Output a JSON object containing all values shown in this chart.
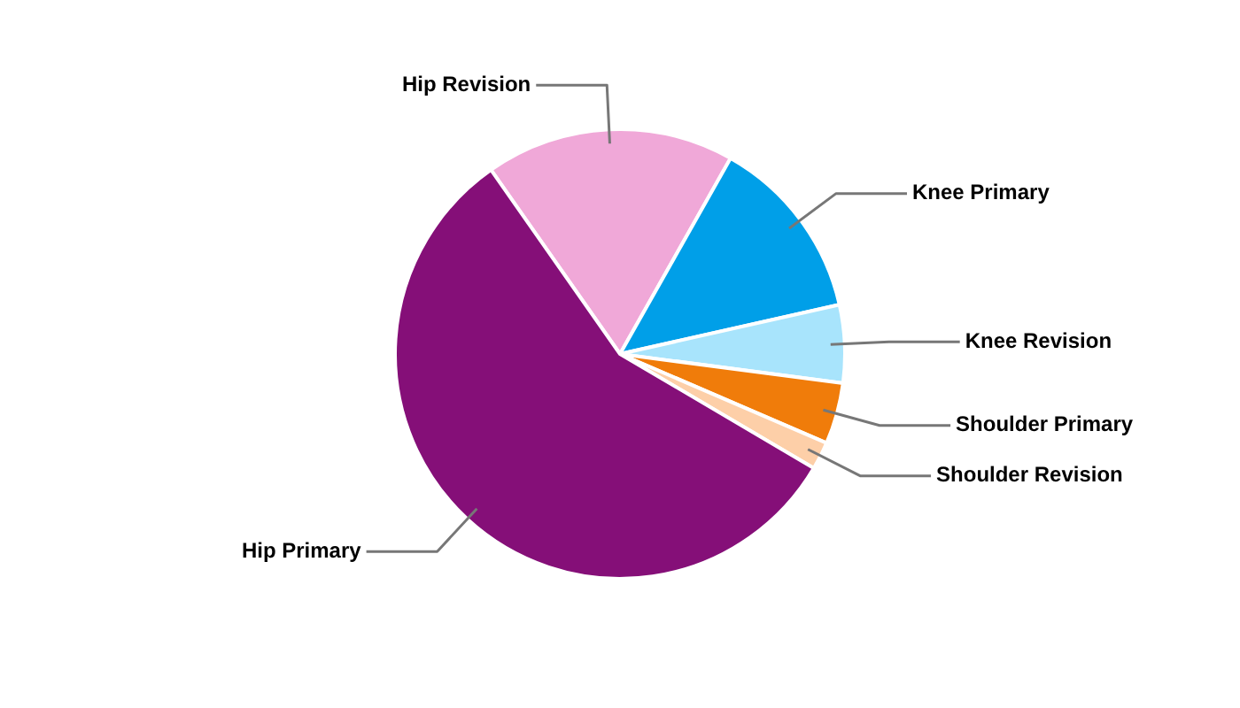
{
  "chart_data": {
    "type": "pie",
    "categories": [
      "Hip Revision",
      "Knee Primary",
      "Knee Revision",
      "Shoulder Primary",
      "Shoulder Revision",
      "Hip Primary"
    ],
    "values": [
      17.9,
      13.3,
      5.6,
      4.4,
      2,
      56.8
    ],
    "colors": [
      "#f0a8d8",
      "#009fe8",
      "#a8e4fc",
      "#f07c0a",
      "#fdcfa8",
      "#850f78"
    ],
    "legend": false
  }
}
